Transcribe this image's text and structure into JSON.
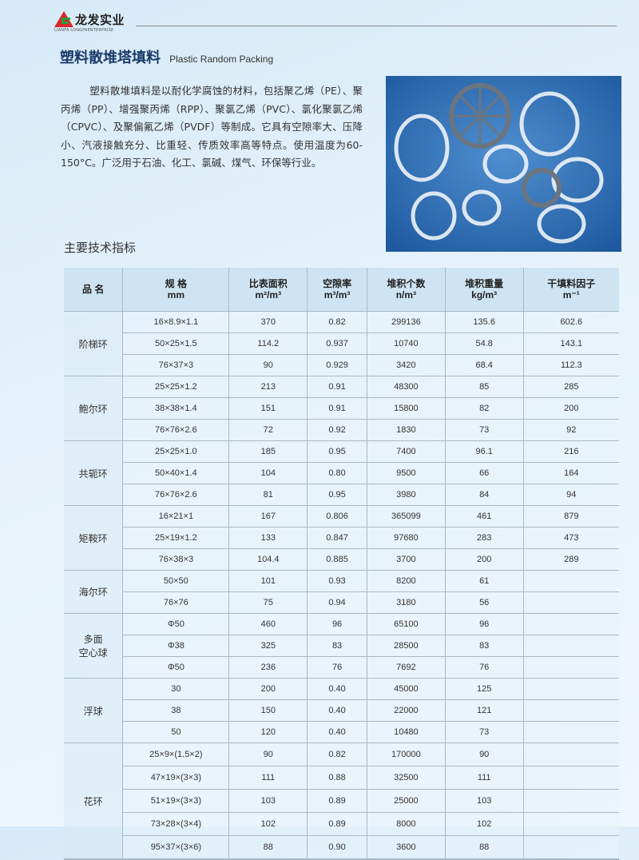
{
  "header": {
    "logo_cn": "龙发实业",
    "logo_en": "LIANFA LONGFAENTERPRISE",
    "brand_colors": {
      "red": "#d8262a",
      "green": "#2a9b3a"
    }
  },
  "title": {
    "cn": "塑料散堆塔填料",
    "en": "Plastic Random Packing"
  },
  "intro": "塑料散堆填料是以耐化学腐蚀的材料，包括聚乙烯（PE）、聚丙烯（PP）、增强聚丙烯（RPP）、聚氯乙烯（PVC）、氯化聚氯乙烯（CPVC）、及聚偏氟乙烯（PVDF）等制成。它具有空隙率大、压降小、汽液接触充分、比重轻、传质效率高等特点。使用温度为60-150°C。广泛用于石油、化工、氯碱、煤气、环保等行业。",
  "section_title": "主要技术指标",
  "table": {
    "headers": [
      {
        "l1": "品 名",
        "l2": ""
      },
      {
        "l1": "规 格",
        "l2": "mm"
      },
      {
        "l1": "比表面积",
        "l2": "m²/m³"
      },
      {
        "l1": "空隙率",
        "l2": "m³/m³"
      },
      {
        "l1": "堆积个数",
        "l2": "n/m³"
      },
      {
        "l1": "堆积重量",
        "l2": "kg/m³"
      },
      {
        "l1": "干填料因子",
        "l2": "m⁻¹"
      }
    ],
    "groups": [
      {
        "name": "阶梯环",
        "rows": [
          [
            "16×8.9×1.1",
            "370",
            "0.82",
            "299136",
            "135.6",
            "602.6"
          ],
          [
            "50×25×1.5",
            "114.2",
            "0.937",
            "10740",
            "54.8",
            "143.1"
          ],
          [
            "76×37×3",
            "90",
            "0.929",
            "3420",
            "68.4",
            "112.3"
          ]
        ]
      },
      {
        "name": "鲍尔环",
        "rows": [
          [
            "25×25×1.2",
            "213",
            "0.91",
            "48300",
            "85",
            "285"
          ],
          [
            "38×38×1.4",
            "151",
            "0.91",
            "15800",
            "82",
            "200"
          ],
          [
            "76×76×2.6",
            "72",
            "0.92",
            "1830",
            "73",
            "92"
          ]
        ]
      },
      {
        "name": "共轭环",
        "rows": [
          [
            "25×25×1.0",
            "185",
            "0.95",
            "7400",
            "96.1",
            "216"
          ],
          [
            "50×40×1.4",
            "104",
            "0.80",
            "9500",
            "66",
            "164"
          ],
          [
            "76×76×2.6",
            "81",
            "0.95",
            "3980",
            "84",
            "94"
          ]
        ]
      },
      {
        "name": "矩鞍环",
        "rows": [
          [
            "16×21×1",
            "167",
            "0.806",
            "365099",
            "461",
            "879"
          ],
          [
            "25×19×1.2",
            "133",
            "0.847",
            "97680",
            "283",
            "473"
          ],
          [
            "76×38×3",
            "104.4",
            "0.885",
            "3700",
            "200",
            "289"
          ]
        ]
      },
      {
        "name": "海尔环",
        "rows": [
          [
            "50×50",
            "101",
            "0.93",
            "8200",
            "61",
            ""
          ],
          [
            "76×76",
            "75",
            "0.94",
            "3180",
            "56",
            ""
          ]
        ]
      },
      {
        "name": "多面\n空心球",
        "rows": [
          [
            "Φ50",
            "460",
            "96",
            "65100",
            "96",
            ""
          ],
          [
            "Φ38",
            "325",
            "83",
            "28500",
            "83",
            ""
          ],
          [
            "Φ50",
            "236",
            "76",
            "7692",
            "76",
            ""
          ]
        ]
      },
      {
        "name": "浮球",
        "rows": [
          [
            "30",
            "200",
            "0.40",
            "45000",
            "125",
            ""
          ],
          [
            "38",
            "150",
            "0.40",
            "22000",
            "121",
            ""
          ],
          [
            "50",
            "120",
            "0.40",
            "10480",
            "73",
            ""
          ]
        ]
      },
      {
        "name": "花环",
        "rows": [
          [
            "25×9×(1.5×2)",
            "90",
            "0.82",
            "170000",
            "90",
            ""
          ],
          [
            "47×19×(3×3)",
            "111",
            "0.88",
            "32500",
            "111",
            ""
          ],
          [
            "51×19×(3×3)",
            "103",
            "0.89",
            "25000",
            "103",
            ""
          ],
          [
            "73×28×(3×4)",
            "102",
            "0.89",
            "8000",
            "102",
            ""
          ],
          [
            "95×37×(3×6)",
            "88",
            "0.90",
            "3600",
            "88",
            ""
          ]
        ]
      }
    ]
  }
}
